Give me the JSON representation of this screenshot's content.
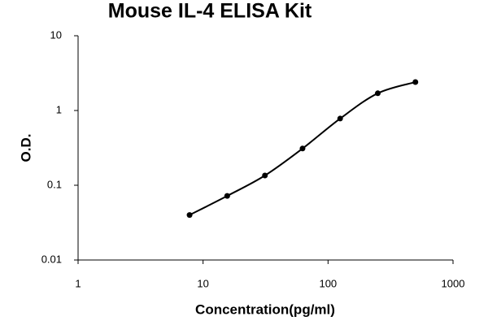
{
  "chart_data": {
    "type": "scatter",
    "title": "Mouse IL-4 ELISA Kit",
    "x_label": "Concentration(pg/ml)",
    "y_label": "O.D.",
    "x": [
      7.8,
      15.6,
      31.25,
      62.5,
      125,
      250,
      500
    ],
    "series": [
      {
        "color": "#000000",
        "values": [
          0.04,
          0.072,
          0.135,
          0.31,
          0.78,
          1.7,
          2.4
        ]
      }
    ],
    "x_log": true,
    "y_log": true,
    "xlim": [
      1,
      1000
    ],
    "xticks": [
      1,
      10,
      100,
      1000
    ],
    "ylim": [
      0.01,
      10
    ],
    "yticks": [
      0.01,
      0.1,
      1,
      10
    ]
  }
}
